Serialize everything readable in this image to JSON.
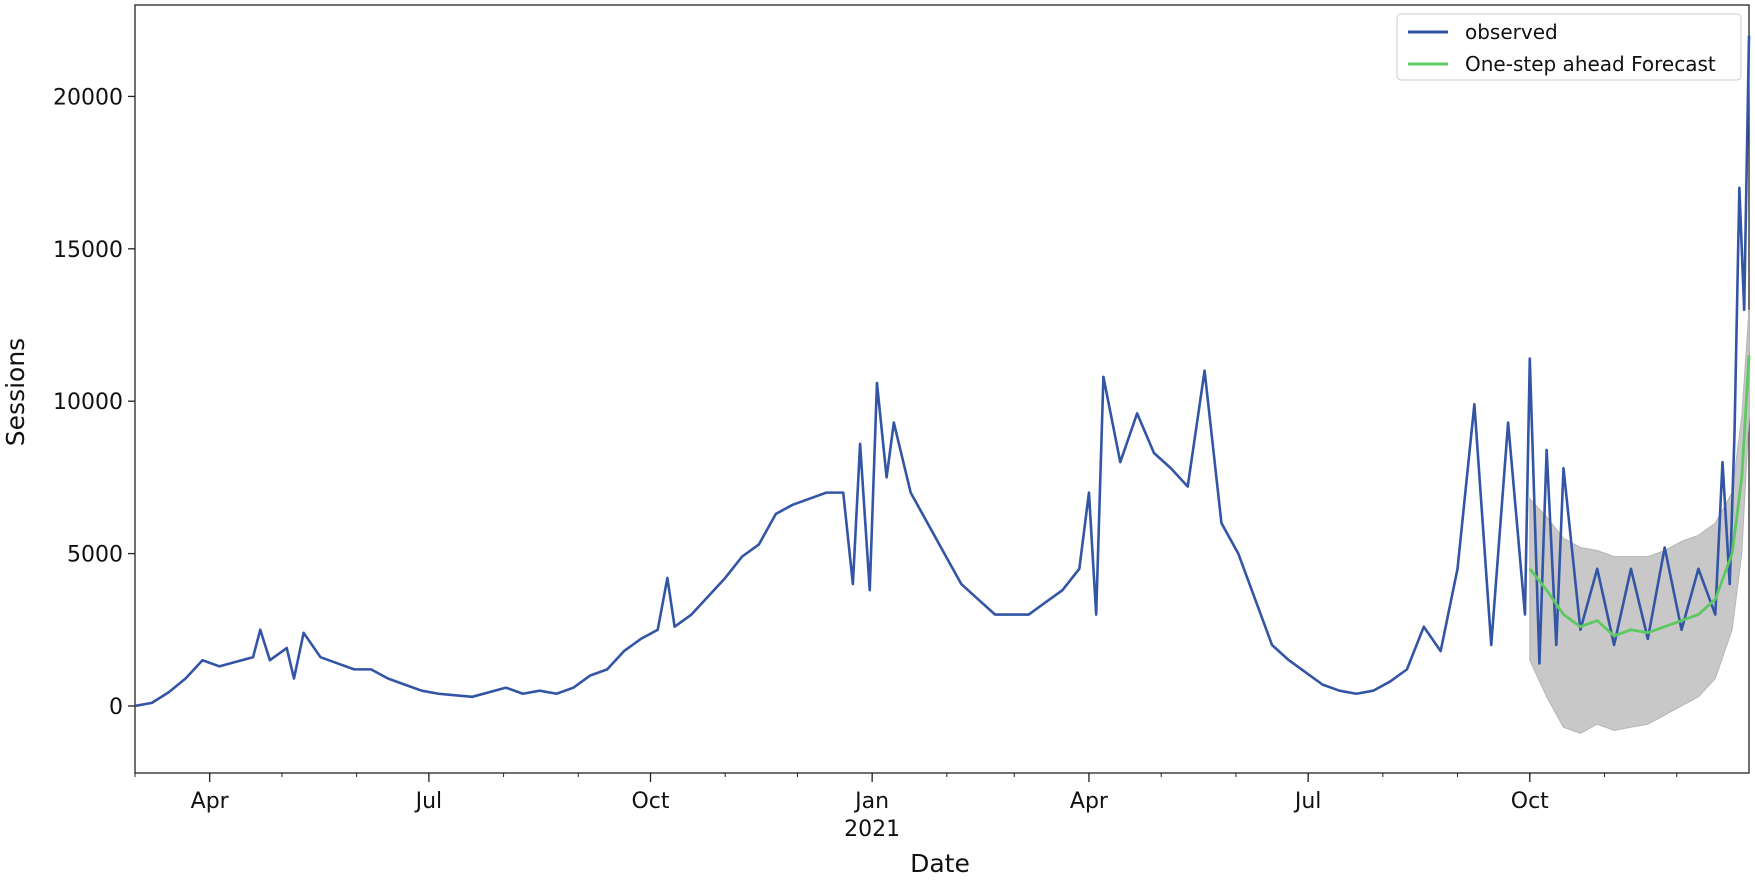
{
  "chart_data": {
    "type": "line",
    "title": "",
    "xlabel": "Date",
    "ylabel": "Sessions",
    "xlim": [
      "2020-03-01",
      "2021-12-31"
    ],
    "ylim": [
      -2200,
      23000
    ],
    "y_ticks": [
      0,
      5000,
      10000,
      15000,
      20000
    ],
    "x_ticks": [
      {
        "date": "2020-04-01",
        "label": "Apr"
      },
      {
        "date": "2020-07-01",
        "label": "Jul"
      },
      {
        "date": "2020-10-01",
        "label": "Oct"
      },
      {
        "date": "2021-01-01",
        "label": "Jan",
        "year": "2021"
      },
      {
        "date": "2021-04-01",
        "label": "Apr"
      },
      {
        "date": "2021-07-01",
        "label": "Jul"
      },
      {
        "date": "2021-10-01",
        "label": "Oct"
      }
    ],
    "grid": false,
    "legend": "top-right",
    "series": [
      {
        "name": "observed",
        "color": "#3355a5",
        "points": [
          [
            "2020-03-01",
            0
          ],
          [
            "2020-03-08",
            100
          ],
          [
            "2020-03-15",
            450
          ],
          [
            "2020-03-22",
            900
          ],
          [
            "2020-03-29",
            1500
          ],
          [
            "2020-04-05",
            1300
          ],
          [
            "2020-04-12",
            1450
          ],
          [
            "2020-04-19",
            1600
          ],
          [
            "2020-04-22",
            2500
          ],
          [
            "2020-04-26",
            1500
          ],
          [
            "2020-05-03",
            1900
          ],
          [
            "2020-05-06",
            900
          ],
          [
            "2020-05-10",
            2400
          ],
          [
            "2020-05-17",
            1600
          ],
          [
            "2020-05-24",
            1400
          ],
          [
            "2020-05-31",
            1200
          ],
          [
            "2020-06-07",
            1200
          ],
          [
            "2020-06-14",
            900
          ],
          [
            "2020-06-21",
            700
          ],
          [
            "2020-06-28",
            500
          ],
          [
            "2020-07-05",
            400
          ],
          [
            "2020-07-12",
            350
          ],
          [
            "2020-07-19",
            300
          ],
          [
            "2020-07-26",
            450
          ],
          [
            "2020-08-02",
            600
          ],
          [
            "2020-08-09",
            400
          ],
          [
            "2020-08-16",
            500
          ],
          [
            "2020-08-23",
            400
          ],
          [
            "2020-08-30",
            600
          ],
          [
            "2020-09-06",
            1000
          ],
          [
            "2020-09-13",
            1200
          ],
          [
            "2020-09-20",
            1800
          ],
          [
            "2020-09-27",
            2200
          ],
          [
            "2020-10-04",
            2500
          ],
          [
            "2020-10-08",
            4200
          ],
          [
            "2020-10-11",
            2600
          ],
          [
            "2020-10-18",
            3000
          ],
          [
            "2020-10-25",
            3600
          ],
          [
            "2020-11-01",
            4200
          ],
          [
            "2020-11-08",
            4900
          ],
          [
            "2020-11-15",
            5300
          ],
          [
            "2020-11-22",
            6300
          ],
          [
            "2020-11-29",
            6600
          ],
          [
            "2020-12-06",
            6800
          ],
          [
            "2020-12-13",
            7000
          ],
          [
            "2020-12-20",
            7000
          ],
          [
            "2020-12-24",
            4000
          ],
          [
            "2020-12-27",
            8600
          ],
          [
            "2020-12-31",
            3800
          ],
          [
            "2021-01-03",
            10600
          ],
          [
            "2021-01-07",
            7500
          ],
          [
            "2021-01-10",
            9300
          ],
          [
            "2021-01-17",
            7000
          ],
          [
            "2021-01-24",
            6000
          ],
          [
            "2021-01-31",
            5000
          ],
          [
            "2021-02-07",
            4000
          ],
          [
            "2021-02-14",
            3500
          ],
          [
            "2021-02-21",
            3000
          ],
          [
            "2021-02-28",
            3000
          ],
          [
            "2021-03-07",
            3000
          ],
          [
            "2021-03-14",
            3400
          ],
          [
            "2021-03-21",
            3800
          ],
          [
            "2021-03-28",
            4500
          ],
          [
            "2021-04-01",
            7000
          ],
          [
            "2021-04-04",
            3000
          ],
          [
            "2021-04-07",
            10800
          ],
          [
            "2021-04-14",
            8000
          ],
          [
            "2021-04-21",
            9600
          ],
          [
            "2021-04-28",
            8300
          ],
          [
            "2021-05-05",
            7800
          ],
          [
            "2021-05-12",
            7200
          ],
          [
            "2021-05-19",
            11000
          ],
          [
            "2021-05-26",
            6000
          ],
          [
            "2021-06-02",
            5000
          ],
          [
            "2021-06-09",
            3500
          ],
          [
            "2021-06-16",
            2000
          ],
          [
            "2021-06-23",
            1500
          ],
          [
            "2021-06-30",
            1100
          ],
          [
            "2021-07-07",
            700
          ],
          [
            "2021-07-14",
            500
          ],
          [
            "2021-07-21",
            400
          ],
          [
            "2021-07-28",
            500
          ],
          [
            "2021-08-04",
            800
          ],
          [
            "2021-08-11",
            1200
          ],
          [
            "2021-08-18",
            2600
          ],
          [
            "2021-08-25",
            1800
          ],
          [
            "2021-09-01",
            4500
          ],
          [
            "2021-09-08",
            9900
          ],
          [
            "2021-09-15",
            2000
          ],
          [
            "2021-09-22",
            9300
          ],
          [
            "2021-09-29",
            3000
          ],
          [
            "2021-10-01",
            11400
          ],
          [
            "2021-10-05",
            1400
          ],
          [
            "2021-10-08",
            8400
          ],
          [
            "2021-10-12",
            2000
          ],
          [
            "2021-10-15",
            7800
          ],
          [
            "2021-10-22",
            2500
          ],
          [
            "2021-10-29",
            4500
          ],
          [
            "2021-11-05",
            2000
          ],
          [
            "2021-11-12",
            4500
          ],
          [
            "2021-11-19",
            2200
          ],
          [
            "2021-11-26",
            5200
          ],
          [
            "2021-12-03",
            2500
          ],
          [
            "2021-12-10",
            4500
          ],
          [
            "2021-12-17",
            3000
          ],
          [
            "2021-12-20",
            8000
          ],
          [
            "2021-12-23",
            4000
          ],
          [
            "2021-12-25",
            9000
          ],
          [
            "2021-12-27",
            17000
          ],
          [
            "2021-12-29",
            13000
          ],
          [
            "2021-12-31",
            22000
          ]
        ]
      },
      {
        "name": "One-step ahead Forecast",
        "color": "#5ec961",
        "points": [
          [
            "2021-10-01",
            4500
          ],
          [
            "2021-10-08",
            3800
          ],
          [
            "2021-10-15",
            3000
          ],
          [
            "2021-10-22",
            2600
          ],
          [
            "2021-10-29",
            2800
          ],
          [
            "2021-11-05",
            2300
          ],
          [
            "2021-11-12",
            2500
          ],
          [
            "2021-11-19",
            2400
          ],
          [
            "2021-11-26",
            2600
          ],
          [
            "2021-12-03",
            2800
          ],
          [
            "2021-12-10",
            3000
          ],
          [
            "2021-12-17",
            3500
          ],
          [
            "2021-12-24",
            5000
          ],
          [
            "2021-12-28",
            7500
          ],
          [
            "2021-12-31",
            11500
          ]
        ],
        "confidence_interval": {
          "color": "#c8c8c8",
          "upper": [
            [
              "2021-10-01",
              6800
            ],
            [
              "2021-10-08",
              6200
            ],
            [
              "2021-10-15",
              5500
            ],
            [
              "2021-10-22",
              5200
            ],
            [
              "2021-10-29",
              5100
            ],
            [
              "2021-11-05",
              4900
            ],
            [
              "2021-11-12",
              4900
            ],
            [
              "2021-11-19",
              4900
            ],
            [
              "2021-11-26",
              5100
            ],
            [
              "2021-12-03",
              5400
            ],
            [
              "2021-12-10",
              5600
            ],
            [
              "2021-12-17",
              6000
            ],
            [
              "2021-12-24",
              7000
            ],
            [
              "2021-12-28",
              9500
            ],
            [
              "2021-12-31",
              13000
            ]
          ],
          "lower": [
            [
              "2021-10-01",
              1500
            ],
            [
              "2021-10-08",
              300
            ],
            [
              "2021-10-15",
              -700
            ],
            [
              "2021-10-22",
              -900
            ],
            [
              "2021-10-29",
              -600
            ],
            [
              "2021-11-05",
              -800
            ],
            [
              "2021-11-12",
              -700
            ],
            [
              "2021-11-19",
              -600
            ],
            [
              "2021-11-26",
              -300
            ],
            [
              "2021-12-03",
              0
            ],
            [
              "2021-12-10",
              300
            ],
            [
              "2021-12-17",
              900
            ],
            [
              "2021-12-24",
              2500
            ],
            [
              "2021-12-28",
              5000
            ],
            [
              "2021-12-31",
              9500
            ]
          ]
        }
      }
    ]
  }
}
